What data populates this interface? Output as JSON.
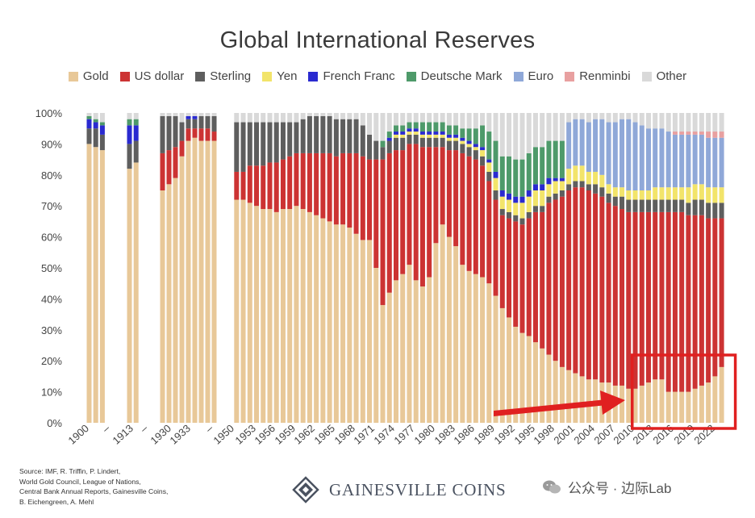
{
  "chart_data": {
    "type": "bar",
    "stacked": true,
    "title": "Global International Reserves",
    "ylim": [
      0,
      100
    ],
    "y_ticks": [
      "0%",
      "10%",
      "20%",
      "30%",
      "40%",
      "50%",
      "60%",
      "70%",
      "80%",
      "90%",
      "100%"
    ],
    "x_tick_labels": [
      "1900",
      "–",
      "1913",
      "–",
      "1930",
      "1933",
      "–",
      "1950",
      "1953",
      "1956",
      "1959",
      "1962",
      "1965",
      "1968",
      "1971",
      "1974",
      "1977",
      "1980",
      "1983",
      "1986",
      "1989",
      "1992",
      "1995",
      "1998",
      "2001",
      "2004",
      "2007",
      "2010",
      "2013",
      "2016",
      "2019",
      "2022"
    ],
    "series": [
      {
        "name": "Gold",
        "color": "#e8c898"
      },
      {
        "name": "US dollar",
        "color": "#cc3333"
      },
      {
        "name": "Sterling",
        "color": "#5e5e5e"
      },
      {
        "name": "Yen",
        "color": "#f2e46a"
      },
      {
        "name": "French Franc",
        "color": "#2a2ad0"
      },
      {
        "name": "Deutsche Mark",
        "color": "#4e9a6a"
      },
      {
        "name": "Euro",
        "color": "#8fa8d8"
      },
      {
        "name": "Renminbi",
        "color": "#e8a0a0"
      },
      {
        "name": "Other",
        "color": "#d9d9d9"
      }
    ],
    "segments": [
      {
        "name": "1900–1903",
        "first_year": 1900,
        "years": 3,
        "gold": [
          90,
          89,
          88
        ],
        "usd": [
          0,
          0,
          0
        ],
        "sterling": [
          5,
          6,
          5
        ],
        "ff": [
          3,
          2,
          3
        ],
        "dm": [
          1,
          1,
          1
        ],
        "other": [
          1,
          2,
          3
        ]
      },
      {
        "name": "1912–1913",
        "first_year": 1912,
        "years": 2,
        "gold": [
          82,
          84
        ],
        "usd": [
          0,
          0
        ],
        "sterling": [
          8,
          7
        ],
        "ff": [
          6,
          5
        ],
        "dm": [
          2,
          2
        ],
        "other": [
          2,
          2
        ]
      },
      {
        "name": "1929–1937",
        "first_year": 1929,
        "years": 9,
        "gold": [
          75,
          77,
          79,
          86,
          91,
          92,
          91,
          91,
          91
        ],
        "usd": [
          12,
          11,
          10,
          5,
          4,
          3,
          4,
          4,
          3
        ],
        "sterling": [
          12,
          11,
          10,
          6,
          3,
          3,
          4,
          4,
          5
        ],
        "ff": [
          0,
          0,
          0,
          0,
          1,
          1,
          0,
          0,
          0
        ],
        "other": [
          1,
          1,
          1,
          3,
          1,
          1,
          1,
          1,
          1
        ]
      },
      {
        "name": "1950–2023",
        "first_year": 1950,
        "years": 74,
        "gold": [
          72,
          72,
          71,
          70,
          69,
          69,
          68,
          69,
          69,
          70,
          69,
          68,
          67,
          66,
          65,
          64,
          64,
          63,
          61,
          59,
          59,
          50,
          38,
          42,
          46,
          48,
          51,
          46,
          44,
          47,
          58,
          64,
          60,
          57,
          51,
          49,
          48,
          47,
          45,
          41,
          37,
          34,
          31,
          29,
          28,
          26,
          24,
          22,
          20,
          18,
          17,
          16,
          15,
          14,
          14,
          13,
          13,
          12,
          12,
          11,
          11,
          12,
          13,
          14,
          14,
          10,
          10,
          10,
          10,
          11,
          12,
          13,
          15,
          18
        ],
        "usd": [
          9,
          9,
          12,
          13,
          14,
          15,
          16,
          16,
          17,
          17,
          18,
          19,
          20,
          21,
          22,
          22,
          23,
          24,
          26,
          27,
          26,
          35,
          47,
          45,
          42,
          40,
          39,
          44,
          45,
          42,
          31,
          25,
          28,
          31,
          36,
          37,
          37,
          36,
          33,
          31,
          30,
          32,
          34,
          35,
          38,
          42,
          44,
          49,
          52,
          55,
          58,
          60,
          61,
          61,
          60,
          60,
          58,
          58,
          57,
          57,
          57,
          56,
          55,
          54,
          54,
          58,
          58,
          58,
          57,
          56,
          55,
          53,
          51,
          48
        ],
        "sterling": [
          16,
          16,
          14,
          14,
          14,
          13,
          13,
          12,
          11,
          10,
          11,
          12,
          12,
          12,
          12,
          12,
          11,
          11,
          11,
          10,
          8,
          6,
          4,
          4,
          4,
          4,
          3,
          3,
          3,
          3,
          3,
          3,
          3,
          3,
          3,
          3,
          3,
          3,
          3,
          3,
          2,
          2,
          2,
          2,
          2,
          2,
          2,
          2,
          2,
          2,
          2,
          2,
          2,
          2,
          3,
          3,
          3,
          3,
          4,
          4,
          4,
          4,
          4,
          4,
          4,
          4,
          4,
          4,
          4,
          5,
          5,
          5,
          5,
          5
        ],
        "yen": [
          0,
          0,
          0,
          0,
          0,
          0,
          0,
          0,
          0,
          0,
          0,
          0,
          0,
          0,
          0,
          0,
          0,
          0,
          0,
          0,
          0,
          0,
          0,
          0,
          1,
          1,
          1,
          1,
          1,
          1,
          1,
          1,
          1,
          1,
          1,
          1,
          1,
          2,
          3,
          4,
          4,
          4,
          4,
          5,
          5,
          5,
          5,
          4,
          4,
          3,
          5,
          5,
          5,
          4,
          4,
          4,
          3,
          3,
          3,
          3,
          3,
          3,
          3,
          4,
          4,
          4,
          4,
          4,
          5,
          5,
          5,
          5,
          5,
          5
        ],
        "ff": [
          0,
          0,
          0,
          0,
          0,
          0,
          0,
          0,
          0,
          0,
          0,
          0,
          0,
          0,
          0,
          0,
          0,
          0,
          0,
          0,
          0,
          0,
          0,
          1,
          1,
          1,
          1,
          1,
          1,
          1,
          1,
          1,
          1,
          1,
          1,
          1,
          1,
          1,
          1,
          2,
          2,
          2,
          2,
          2,
          2,
          2,
          2,
          2,
          1,
          1,
          0,
          0,
          0,
          0,
          0,
          0,
          0,
          0,
          0,
          0,
          0,
          0,
          0,
          0,
          0,
          0,
          0,
          0,
          0,
          0,
          0,
          0,
          0,
          0
        ],
        "dm": [
          0,
          0,
          0,
          0,
          0,
          0,
          0,
          0,
          0,
          0,
          0,
          0,
          0,
          0,
          0,
          0,
          0,
          0,
          0,
          0,
          0,
          0,
          2,
          2,
          2,
          2,
          2,
          2,
          3,
          3,
          3,
          3,
          3,
          3,
          3,
          4,
          5,
          7,
          9,
          10,
          11,
          12,
          12,
          12,
          12,
          12,
          12,
          12,
          12,
          12,
          0,
          0,
          0,
          0,
          0,
          0,
          0,
          0,
          0,
          0,
          0,
          0,
          0,
          0,
          0,
          0,
          0,
          0,
          0,
          0,
          0,
          0,
          0,
          0
        ],
        "euro": [
          0,
          0,
          0,
          0,
          0,
          0,
          0,
          0,
          0,
          0,
          0,
          0,
          0,
          0,
          0,
          0,
          0,
          0,
          0,
          0,
          0,
          0,
          0,
          0,
          0,
          0,
          0,
          0,
          0,
          0,
          0,
          0,
          0,
          0,
          0,
          0,
          0,
          0,
          0,
          0,
          0,
          0,
          0,
          0,
          0,
          0,
          0,
          0,
          0,
          0,
          15,
          15,
          15,
          16,
          17,
          18,
          20,
          21,
          22,
          23,
          22,
          21,
          20,
          19,
          19,
          18,
          17,
          17,
          17,
          16,
          16,
          16,
          16,
          16
        ],
        "rmb": [
          0,
          0,
          0,
          0,
          0,
          0,
          0,
          0,
          0,
          0,
          0,
          0,
          0,
          0,
          0,
          0,
          0,
          0,
          0,
          0,
          0,
          0,
          0,
          0,
          0,
          0,
          0,
          0,
          0,
          0,
          0,
          0,
          0,
          0,
          0,
          0,
          0,
          0,
          0,
          0,
          0,
          0,
          0,
          0,
          0,
          0,
          0,
          0,
          0,
          0,
          0,
          0,
          0,
          0,
          0,
          0,
          0,
          0,
          0,
          0,
          0,
          0,
          0,
          0,
          0,
          0,
          1,
          1,
          1,
          1,
          1,
          2,
          2,
          2
        ]
      }
    ],
    "highlight": {
      "from_year": 2011,
      "to_year": 2023,
      "color": "#e02020"
    }
  },
  "source_note": [
    "Source: IMF, R. Triffin, P. Lindert,",
    "World Gold Council, League of Nations,",
    "Central Bank Annual Reports, Gainesville Coins,",
    "B. Eichengreen, A. Mehl"
  ],
  "brand": {
    "name": "GAINESVILLE COINS"
  },
  "watermark": {
    "text": "公众号 · 边际Lab"
  }
}
